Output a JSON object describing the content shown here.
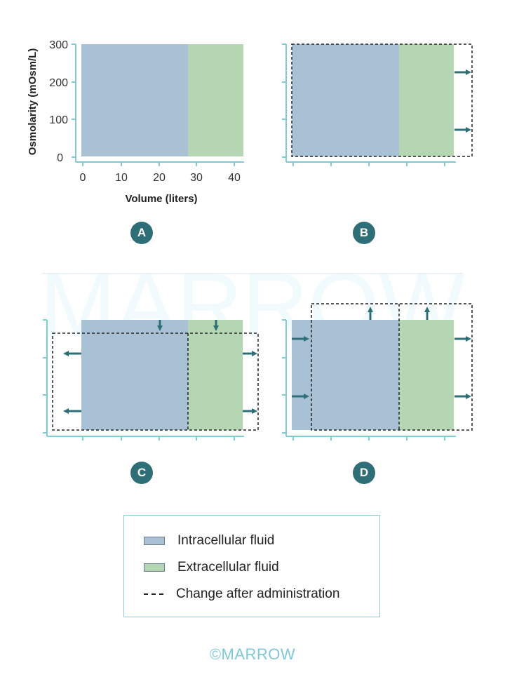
{
  "watermark": "MARROW",
  "panels": [
    {
      "label": "A"
    },
    {
      "label": "B"
    },
    {
      "label": "C"
    },
    {
      "label": "D"
    }
  ],
  "axes": {
    "ylabel": "Osmolarity (mOsm/L)",
    "xlabel": "Volume (liters)",
    "yticks": [
      "0",
      "100",
      "200",
      "300"
    ],
    "xticks": [
      "0",
      "10",
      "20",
      "30",
      "40"
    ]
  },
  "colors": {
    "intracellular": "#a9c1d4",
    "extracellular": "#b5d6b2",
    "axis": "#7fcbd6",
    "arrow": "#2e6f77",
    "badge": "#2e6f77"
  },
  "legend": {
    "intracellular": "Intracellular fluid",
    "extracellular": "Extracellular fluid",
    "change": "Change after administration"
  },
  "copyright": "©MARROW"
}
